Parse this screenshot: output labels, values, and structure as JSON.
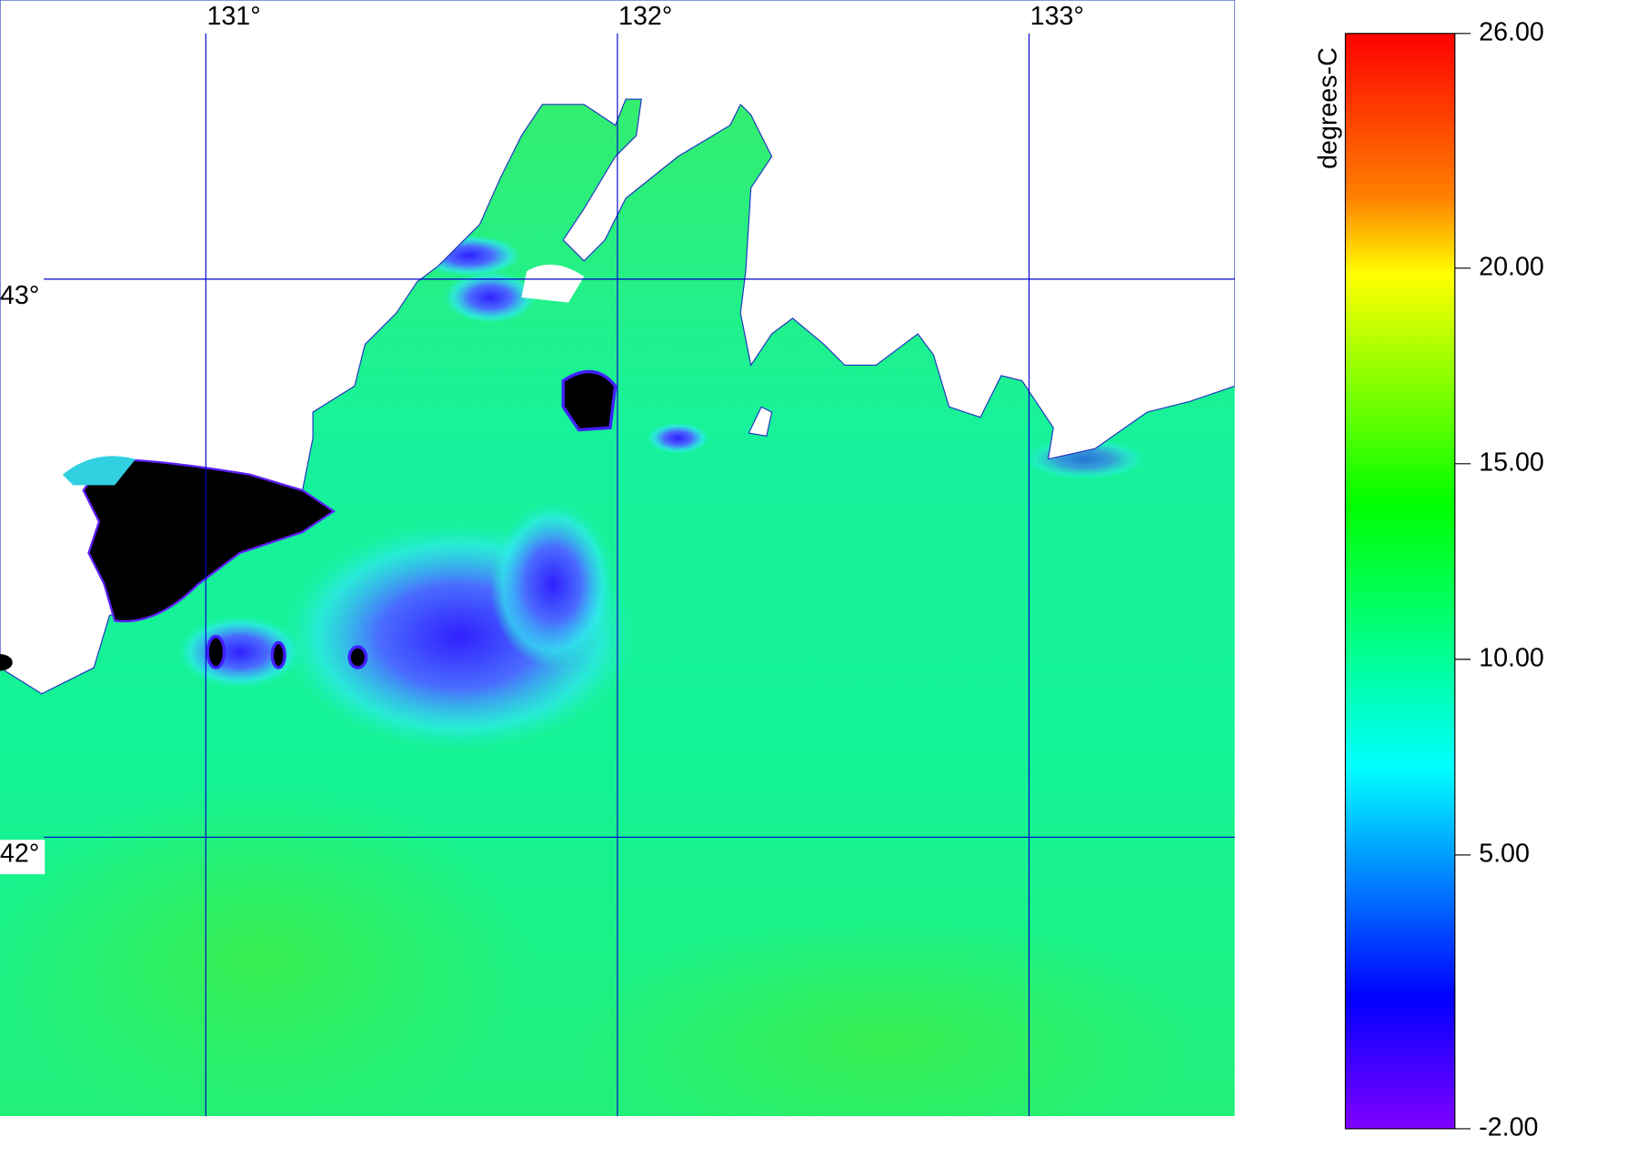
{
  "map": {
    "xlim": [
      130.5,
      133.5
    ],
    "ylim": [
      41.5,
      43.5
    ],
    "xticks": [
      {
        "value": 131,
        "label": "131°"
      },
      {
        "value": 132,
        "label": "132°"
      },
      {
        "value": 133,
        "label": "133°"
      }
    ],
    "yticks": [
      {
        "value": 43,
        "label": "43°"
      },
      {
        "value": 42,
        "label": "42°"
      }
    ],
    "grid_color": "#0000cc"
  },
  "colorbar": {
    "label": "degrees-C",
    "range": [
      -2,
      26
    ],
    "ticks": [
      {
        "value": 26,
        "label": "26.00"
      },
      {
        "value": 20,
        "label": "20.00"
      },
      {
        "value": 15,
        "label": "15.00"
      },
      {
        "value": 10,
        "label": "10.00"
      },
      {
        "value": 5,
        "label": "5.00"
      },
      {
        "value": -2,
        "label": "-2.00"
      }
    ]
  }
}
